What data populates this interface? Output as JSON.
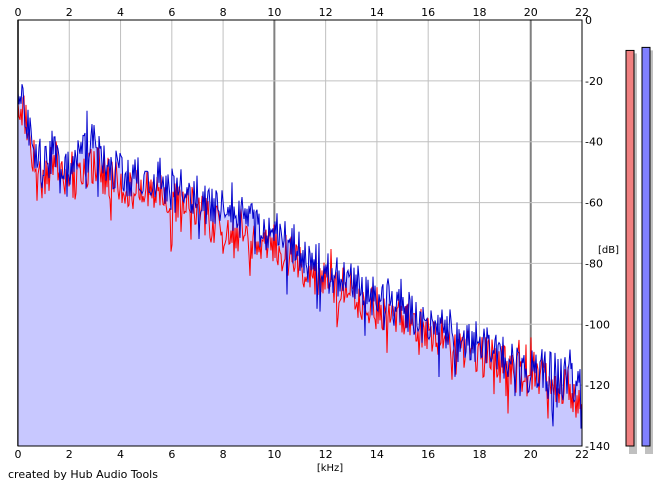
{
  "credit": "created by Hub Audio Tools",
  "chart_data": {
    "type": "area",
    "xlabel": "[kHz]",
    "ylabel": "[dB]",
    "xlim": [
      0,
      22
    ],
    "ylim": [
      -140,
      0
    ],
    "x_ticks": [
      0,
      2,
      4,
      6,
      8,
      10,
      12,
      14,
      16,
      18,
      20,
      22
    ],
    "y_ticks": [
      0,
      -20,
      -40,
      -60,
      -80,
      -100,
      -120,
      -140
    ],
    "x_tick_labels": [
      "0",
      "2",
      "4",
      "6",
      "8",
      "10",
      "12",
      "14",
      "16",
      "18",
      "20",
      "22"
    ],
    "y_tick_labels": [
      "0",
      "-20",
      "-40",
      "-60",
      "-80",
      "-100",
      "-120",
      "-140"
    ],
    "grid": true,
    "series": [
      {
        "color": "#ff0000",
        "x": [
          0,
          0.2,
          0.5,
          1,
          1.5,
          2,
          2.5,
          3,
          3.5,
          4,
          4.5,
          5,
          5.5,
          6,
          6.5,
          7,
          7.5,
          8,
          8.5,
          9,
          9.5,
          10,
          10.5,
          11,
          11.5,
          12,
          12.5,
          13,
          13.5,
          14,
          14.5,
          15,
          15.5,
          16,
          16.5,
          17,
          17.5,
          18,
          18.5,
          19,
          19.5,
          20,
          20.5,
          21,
          21.5,
          22
        ],
        "values": [
          -30,
          -28,
          -42,
          -52,
          -46,
          -55,
          -50,
          -47,
          -52,
          -54,
          -56,
          -55,
          -57,
          -59,
          -60,
          -63,
          -66,
          -68,
          -69,
          -71,
          -73,
          -74,
          -77,
          -80,
          -83,
          -85,
          -88,
          -89,
          -92,
          -94,
          -96,
          -98,
          -100,
          -102,
          -104,
          -106,
          -109,
          -110,
          -112,
          -113,
          -116,
          -117,
          -118,
          -119,
          -121,
          -127
        ]
      },
      {
        "color": "#0000cc",
        "x": [
          0,
          0.2,
          0.5,
          1,
          1.5,
          2,
          2.5,
          3,
          3.5,
          4,
          4.5,
          5,
          5.5,
          6,
          6.5,
          7,
          7.5,
          8,
          8.5,
          9,
          9.5,
          10,
          10.5,
          11,
          11.5,
          12,
          12.5,
          13,
          13.5,
          14,
          14.5,
          15,
          15.5,
          16,
          16.5,
          17,
          17.5,
          18,
          18.5,
          19,
          19.5,
          20,
          20.5,
          21,
          21.5,
          22
        ],
        "values": [
          -28,
          -25,
          -40,
          -48,
          -42,
          -51,
          -44,
          -38,
          -49,
          -50,
          -52,
          -50,
          -53,
          -55,
          -56,
          -58,
          -61,
          -63,
          -64,
          -66,
          -68,
          -70,
          -72,
          -76,
          -79,
          -81,
          -84,
          -86,
          -89,
          -90,
          -92,
          -94,
          -96,
          -98,
          -101,
          -102,
          -105,
          -106,
          -108,
          -110,
          -112,
          -113,
          -115,
          -116,
          -118,
          -120
        ]
      }
    ],
    "level_meters": [
      {
        "color": "#f08080",
        "value_db": -10
      },
      {
        "color": "#8080ff",
        "value_db": -9
      }
    ],
    "colors": {
      "fill": "#c8c8ff",
      "grid": "#c0c0c0",
      "grid_major": "#808080",
      "axis": "#000000"
    }
  }
}
